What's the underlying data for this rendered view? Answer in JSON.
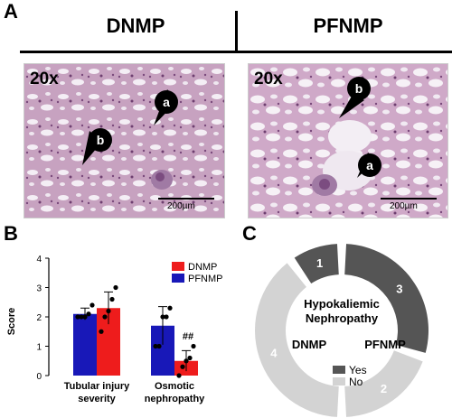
{
  "panel_a": {
    "letter": "A",
    "left_title": "DNMP",
    "right_title": "PFNMP",
    "left_image": {
      "magnification": "20x",
      "scale": "200µm",
      "markers": [
        "a",
        "b"
      ]
    },
    "right_image": {
      "magnification": "20x",
      "scale": "200µm",
      "markers": [
        "b",
        "a"
      ]
    }
  },
  "panel_b": {
    "letter": "B",
    "ylabel": "Score",
    "legend": [
      "DNMP",
      "PFNMP"
    ],
    "annotation": "##",
    "colors": {
      "DNMP": "#ee1c1c",
      "PFNMP": "#1818b8"
    }
  },
  "panel_c": {
    "letter": "C",
    "center_title": "Hypokaliemic Nephropathy",
    "left_label": "DNMP",
    "right_label": "PFNMP",
    "legend": [
      "Yes",
      "No"
    ],
    "colors": {
      "Yes": "#555555",
      "No": "#d3d3d3"
    }
  },
  "chart_data": [
    {
      "type": "bar",
      "categories": [
        "Tubular injury severity",
        "Osmotic nephropathy"
      ],
      "series": [
        {
          "name": "DNMP",
          "values": [
            2.3,
            0.5
          ],
          "errors": [
            0.55,
            0.35
          ],
          "points": [
            [
              1.5,
              2.0,
              2.2,
              2.6,
              3.0
            ],
            [
              0.0,
              0.3,
              0.5,
              0.6,
              1.0
            ]
          ]
        },
        {
          "name": "PFNMP",
          "values": [
            2.1,
            1.7
          ],
          "errors": [
            0.2,
            0.65
          ],
          "points": [
            [
              2.0,
              2.0,
              2.0,
              2.1,
              2.4
            ],
            [
              1.0,
              1.0,
              2.0,
              2.0,
              2.3
            ]
          ]
        }
      ],
      "ylabel": "Score",
      "ylim": [
        0,
        4
      ],
      "yticks": [
        0,
        1,
        2,
        3,
        4
      ]
    },
    {
      "type": "pie",
      "subtype": "donut",
      "title": "Hypokaliemic Nephropathy",
      "groups": [
        {
          "name": "DNMP",
          "slices": [
            {
              "label": "Yes",
              "value": 1
            },
            {
              "label": "No",
              "value": 4
            }
          ]
        },
        {
          "name": "PFNMP",
          "slices": [
            {
              "label": "Yes",
              "value": 3
            },
            {
              "label": "No",
              "value": 2
            }
          ]
        }
      ]
    }
  ]
}
